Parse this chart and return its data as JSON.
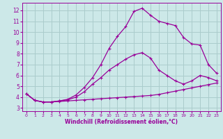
{
  "xlabel": "Windchill (Refroidissement éolien,°C)",
  "bg_color": "#cce8e8",
  "grid_color": "#aacccc",
  "line_color": "#990099",
  "xlim": [
    -0.5,
    23.5
  ],
  "ylim": [
    2.7,
    12.7
  ],
  "xticks": [
    0,
    1,
    2,
    3,
    4,
    5,
    6,
    7,
    8,
    9,
    10,
    11,
    12,
    13,
    14,
    15,
    16,
    17,
    18,
    19,
    20,
    21,
    22,
    23
  ],
  "yticks": [
    3,
    4,
    5,
    6,
    7,
    8,
    9,
    10,
    11,
    12
  ],
  "x": [
    0,
    1,
    2,
    3,
    4,
    5,
    6,
    7,
    8,
    9,
    10,
    11,
    12,
    13,
    14,
    15,
    16,
    17,
    18,
    19,
    20,
    21,
    22,
    23
  ],
  "curve1": [
    4.3,
    3.7,
    3.55,
    3.55,
    3.6,
    3.65,
    3.7,
    3.75,
    3.8,
    3.85,
    3.9,
    3.95,
    4.0,
    4.05,
    4.1,
    4.15,
    4.25,
    4.4,
    4.55,
    4.7,
    4.85,
    5.0,
    5.15,
    5.3
  ],
  "curve2": [
    4.3,
    3.7,
    3.55,
    3.55,
    3.65,
    3.75,
    4.0,
    4.5,
    5.2,
    5.8,
    6.5,
    7.0,
    7.5,
    7.9,
    8.1,
    7.6,
    6.5,
    6.0,
    5.5,
    5.2,
    5.5,
    6.0,
    5.8,
    5.5
  ],
  "curve3": [
    4.3,
    3.7,
    3.55,
    3.55,
    3.65,
    3.8,
    4.2,
    4.9,
    5.8,
    7.0,
    8.5,
    9.6,
    10.5,
    11.9,
    12.2,
    11.55,
    11.0,
    10.8,
    10.6,
    9.5,
    8.9,
    8.8,
    7.0,
    6.2
  ],
  "xlabel_fontsize": 5.5,
  "tick_fontsize_x": 4.5,
  "tick_fontsize_y": 5.5
}
